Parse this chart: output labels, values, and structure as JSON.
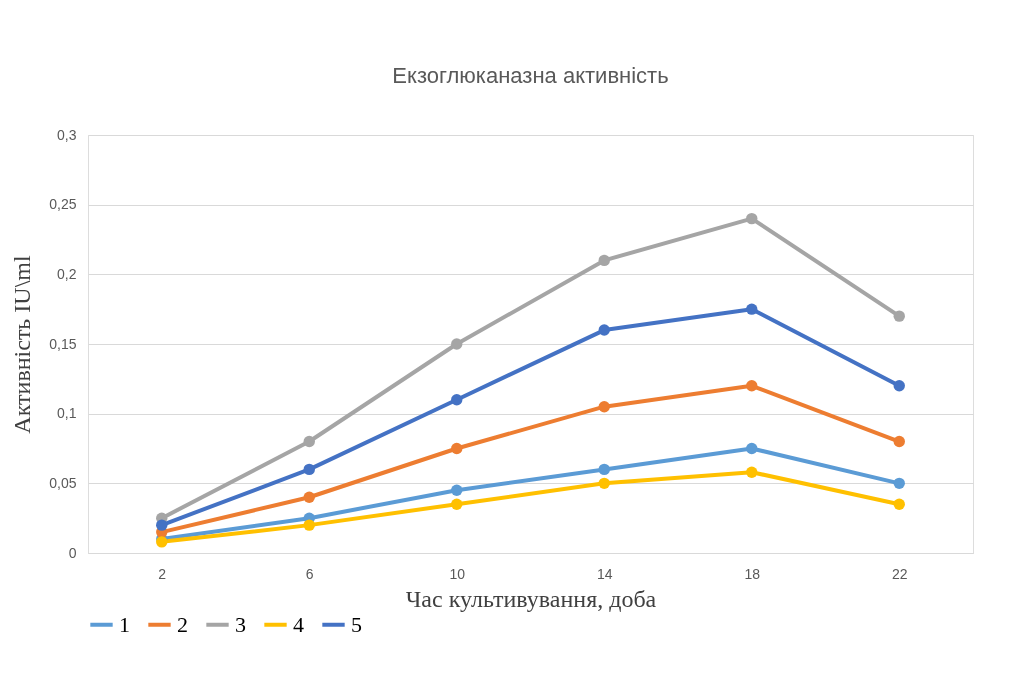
{
  "chart_data": {
    "type": "line",
    "title": "Екзоглюканазна активність",
    "xlabel": "Час культивування, доба",
    "ylabel": "Активність IU\\ml",
    "categories": [
      "2",
      "6",
      "10",
      "14",
      "18",
      "22"
    ],
    "series": [
      {
        "name": "1",
        "color": "#5b9bd5",
        "values": [
          0.01,
          0.025,
          0.045,
          0.06,
          0.075,
          0.05
        ]
      },
      {
        "name": "2",
        "color": "#ed7d31",
        "values": [
          0.015,
          0.04,
          0.075,
          0.105,
          0.12,
          0.08
        ]
      },
      {
        "name": "3",
        "color": "#a5a5a5",
        "values": [
          0.025,
          0.08,
          0.15,
          0.21,
          0.24,
          0.17
        ]
      },
      {
        "name": "4",
        "color": "#ffc000",
        "values": [
          0.008,
          0.02,
          0.035,
          0.05,
          0.058,
          0.035
        ]
      },
      {
        "name": "5",
        "color": "#4472c4",
        "values": [
          0.02,
          0.06,
          0.11,
          0.16,
          0.175,
          0.12
        ]
      }
    ],
    "ylim": [
      0,
      0.3
    ],
    "yticks": [
      {
        "value": 0,
        "label": "0"
      },
      {
        "value": 0.05,
        "label": "0,05"
      },
      {
        "value": 0.1,
        "label": "0,1"
      },
      {
        "value": 0.15,
        "label": "0,15"
      },
      {
        "value": 0.2,
        "label": "0,2"
      },
      {
        "value": 0.25,
        "label": "0,25"
      },
      {
        "value": 0.3,
        "label": "0,3"
      }
    ],
    "grid": "y",
    "legend": "bottom",
    "marker": "circle",
    "line_style": "solid"
  }
}
